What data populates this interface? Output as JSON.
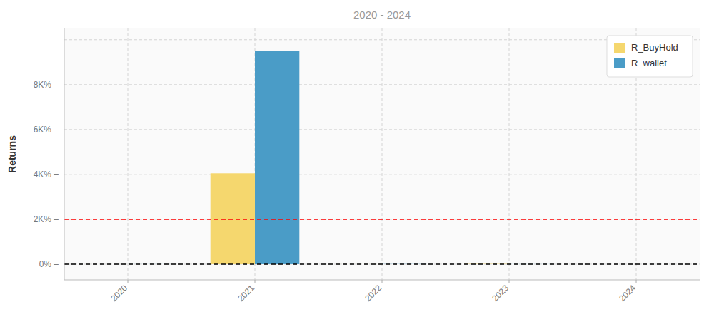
{
  "chart_data": {
    "type": "bar",
    "title": "2020 - 2024",
    "ylabel": "Returns",
    "categories": [
      "2020",
      "2021",
      "2022",
      "2023",
      "2024"
    ],
    "series": [
      {
        "name": "R_BuyHold",
        "color": "#F5D76E",
        "values": [
          0.003,
          40.5,
          0.008,
          0.12,
          0.0
        ]
      },
      {
        "name": "R_wallet",
        "color": "#4A9CC7",
        "values": [
          0.018,
          95.0,
          0.055,
          -0.025,
          -0.003
        ]
      }
    ],
    "hlines": [
      {
        "y": 0,
        "color": "#000000"
      },
      {
        "y": 20,
        "color": "red"
      }
    ],
    "ylim": [
      -7,
      105
    ],
    "yticks": [
      {
        "value": 0,
        "label": "0% –"
      },
      {
        "value": 20,
        "label": "2K% –"
      },
      {
        "value": 40,
        "label": "4K% –"
      },
      {
        "value": 60,
        "label": "6K% –"
      },
      {
        "value": 80,
        "label": "8K% –"
      },
      {
        "value": 100,
        "label": null
      }
    ],
    "grid": true,
    "legend": "upper right"
  }
}
